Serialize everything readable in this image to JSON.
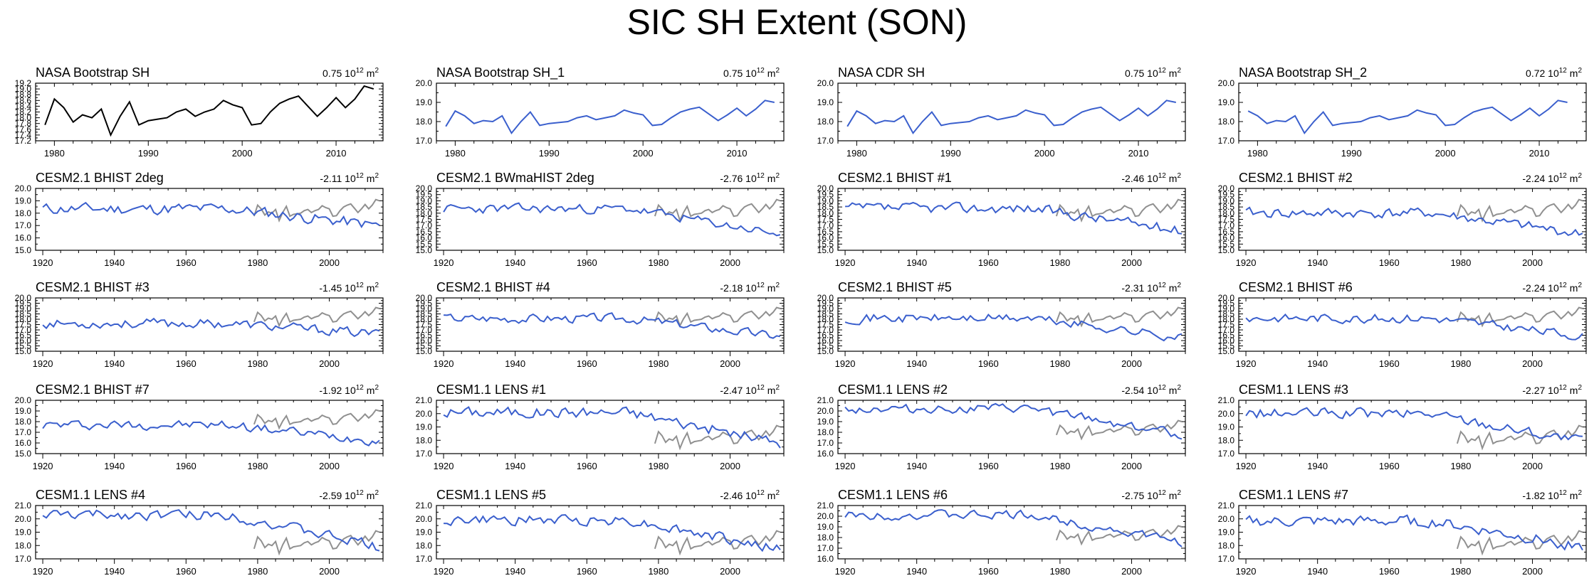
{
  "title": "SIC SH Extent (SON)",
  "unit_base": "10",
  "unit_exp": "12",
  "unit_m": "m",
  "unit_sq": "2",
  "colors": {
    "observed": "#000000",
    "model": "#3a5fcd",
    "obs_overlay": "#909090"
  },
  "chart_data": [
    {
      "type": "line",
      "title": "NASA Bootstrap SH",
      "trend": "0.75",
      "color": "#000000",
      "x_start": 1979,
      "xlim": [
        1978,
        2015
      ],
      "xticks": [
        1980,
        1990,
        2000,
        2010
      ],
      "ylim": [
        17.2,
        19.2
      ],
      "ytick_labels": [
        "17.2",
        "17.4",
        "17.6",
        "17.8",
        "18.0",
        "18.2",
        "18.4",
        "18.6",
        "18.8",
        "19.0",
        "19.2"
      ],
      "overlay": false,
      "values": [
        17.75,
        18.65,
        18.35,
        17.85,
        18.1,
        18.0,
        18.3,
        17.4,
        18.05,
        18.55,
        17.75,
        17.9,
        17.95,
        18.0,
        18.2,
        18.3,
        18.05,
        18.2,
        18.3,
        18.6,
        18.45,
        18.35,
        17.75,
        17.8,
        18.2,
        18.5,
        18.65,
        18.75,
        18.4,
        18.05,
        18.35,
        18.7,
        18.35,
        18.65,
        19.1,
        19.0
      ]
    },
    {
      "type": "line",
      "title": "NASA Bootstrap SH_1",
      "trend": "0.75",
      "color": "#3a5fcd",
      "x_start": 1979,
      "xlim": [
        1978,
        2015
      ],
      "xticks": [
        1980,
        1990,
        2000,
        2010
      ],
      "ylim": [
        17.0,
        20.0
      ],
      "ytick_labels": [
        "17.0",
        "18.0",
        "19.0",
        "20.0"
      ],
      "overlay": false,
      "values": [
        17.75,
        18.55,
        18.3,
        17.9,
        18.05,
        18.0,
        18.3,
        17.4,
        18.0,
        18.5,
        17.8,
        17.9,
        17.95,
        18.0,
        18.2,
        18.3,
        18.1,
        18.2,
        18.3,
        18.6,
        18.45,
        18.35,
        17.8,
        17.85,
        18.2,
        18.5,
        18.65,
        18.75,
        18.4,
        18.05,
        18.35,
        18.7,
        18.3,
        18.65,
        19.1,
        19.0
      ]
    },
    {
      "type": "line",
      "title": "NASA CDR SH",
      "trend": "0.75",
      "color": "#3a5fcd",
      "x_start": 1979,
      "xlim": [
        1978,
        2015
      ],
      "xticks": [
        1980,
        1990,
        2000,
        2010
      ],
      "ylim": [
        17.0,
        20.0
      ],
      "ytick_labels": [
        "17.0",
        "18.0",
        "19.0",
        "20.0"
      ],
      "overlay": false,
      "values": [
        17.75,
        18.55,
        18.3,
        17.9,
        18.05,
        18.0,
        18.3,
        17.4,
        18.0,
        18.5,
        17.8,
        17.9,
        17.95,
        18.0,
        18.2,
        18.3,
        18.1,
        18.2,
        18.3,
        18.6,
        18.45,
        18.35,
        17.8,
        17.85,
        18.2,
        18.5,
        18.65,
        18.75,
        18.4,
        18.05,
        18.35,
        18.7,
        18.3,
        18.65,
        19.1,
        19.0
      ]
    },
    {
      "type": "line",
      "title": "NASA Bootstrap SH_2",
      "trend": "0.72",
      "color": "#3a5fcd",
      "x_start": 1979,
      "xlim": [
        1978,
        2015
      ],
      "xticks": [
        1980,
        1990,
        2000,
        2010
      ],
      "ylim": [
        17.0,
        20.0
      ],
      "ytick_labels": [
        "17.0",
        "18.0",
        "19.0",
        "20.0"
      ],
      "overlay": false,
      "values": [
        18.55,
        18.3,
        17.9,
        18.05,
        18.0,
        18.3,
        17.4,
        18.0,
        18.5,
        17.8,
        17.9,
        17.95,
        18.0,
        18.2,
        18.3,
        18.1,
        18.2,
        18.3,
        18.6,
        18.45,
        18.35,
        17.8,
        17.85,
        18.2,
        18.5,
        18.65,
        18.75,
        18.4,
        18.05,
        18.35,
        18.7,
        18.3,
        18.65,
        19.1,
        19.0
      ]
    },
    {
      "type": "line",
      "title": "CESM2.1 BHIST 2deg",
      "trend": "-2.11",
      "color": "#3a5fcd",
      "x_start": 1920,
      "xlim": [
        1918,
        2015
      ],
      "xticks": [
        1920,
        1940,
        1960,
        1980,
        2000
      ],
      "ylim": [
        15.0,
        20.0
      ],
      "ytick_labels": [
        "15.0",
        "16.0",
        "17.0",
        "18.0",
        "19.0",
        "20.0"
      ],
      "overlay": true,
      "n": 95,
      "base": [
        18.35,
        17.0
      ],
      "amp": 0.42,
      "seed": 11
    },
    {
      "type": "line",
      "title": "CESM2.1 BWmaHIST 2deg",
      "trend": "-2.76",
      "color": "#3a5fcd",
      "x_start": 1920,
      "xlim": [
        1918,
        2015
      ],
      "xticks": [
        1920,
        1940,
        1960,
        1980,
        2000
      ],
      "ylim": [
        15.0,
        20.0
      ],
      "ytick_labels": [
        "15.0",
        "15.5",
        "16.0",
        "16.5",
        "17.0",
        "17.5",
        "18.0",
        "18.5",
        "19.0",
        "19.5",
        "20.0"
      ],
      "overlay": true,
      "n": 95,
      "base": [
        18.35,
        16.3
      ],
      "amp": 0.35,
      "seed": 23
    },
    {
      "type": "line",
      "title": "CESM2.1 BHIST #1",
      "trend": "-2.46",
      "color": "#3a5fcd",
      "x_start": 1920,
      "xlim": [
        1918,
        2015
      ],
      "xticks": [
        1920,
        1940,
        1960,
        1980,
        2000
      ],
      "ylim": [
        15.0,
        20.0
      ],
      "ytick_labels": [
        "15.0",
        "15.5",
        "16.0",
        "16.5",
        "17.0",
        "17.5",
        "18.0",
        "18.5",
        "19.0",
        "19.5",
        "20.0"
      ],
      "overlay": true,
      "n": 95,
      "base": [
        18.4,
        16.6
      ],
      "amp": 0.38,
      "seed": 37
    },
    {
      "type": "line",
      "title": "CESM2.1 BHIST #2",
      "trend": "-2.24",
      "color": "#3a5fcd",
      "x_start": 1920,
      "xlim": [
        1918,
        2015
      ],
      "xticks": [
        1920,
        1940,
        1960,
        1980,
        2000
      ],
      "ylim": [
        15.0,
        20.0
      ],
      "ytick_labels": [
        "15.0",
        "15.5",
        "16.0",
        "16.5",
        "17.0",
        "17.5",
        "18.0",
        "18.5",
        "19.0",
        "19.5",
        "20.0"
      ],
      "overlay": true,
      "n": 95,
      "base": [
        18.0,
        16.3
      ],
      "amp": 0.38,
      "seed": 41
    },
    {
      "type": "line",
      "title": "CESM2.1 BHIST #3",
      "trend": "-1.45",
      "color": "#3a5fcd",
      "x_start": 1920,
      "xlim": [
        1918,
        2015
      ],
      "xticks": [
        1920,
        1940,
        1960,
        1980,
        2000
      ],
      "ylim": [
        15.0,
        20.0
      ],
      "ytick_labels": [
        "15.0",
        "15.5",
        "16.0",
        "16.5",
        "17.0",
        "17.5",
        "18.0",
        "18.5",
        "19.0",
        "19.5",
        "20.0"
      ],
      "overlay": true,
      "n": 95,
      "base": [
        17.6,
        16.6
      ],
      "amp": 0.4,
      "seed": 53
    },
    {
      "type": "line",
      "title": "CESM2.1 BHIST #4",
      "trend": "-2.18",
      "color": "#3a5fcd",
      "x_start": 1920,
      "xlim": [
        1918,
        2015
      ],
      "xticks": [
        1920,
        1940,
        1960,
        1980,
        2000
      ],
      "ylim": [
        15.0,
        20.0
      ],
      "ytick_labels": [
        "15.0",
        "15.5",
        "16.0",
        "16.5",
        "17.0",
        "17.5",
        "18.0",
        "18.5",
        "19.0",
        "19.5",
        "20.0"
      ],
      "overlay": true,
      "n": 95,
      "base": [
        18.1,
        16.4
      ],
      "amp": 0.38,
      "seed": 67
    },
    {
      "type": "line",
      "title": "CESM2.1 BHIST #5",
      "trend": "-2.31",
      "color": "#3a5fcd",
      "x_start": 1920,
      "xlim": [
        1918,
        2015
      ],
      "xticks": [
        1920,
        1940,
        1960,
        1980,
        2000
      ],
      "ylim": [
        15.0,
        20.0
      ],
      "ytick_labels": [
        "15.0",
        "15.5",
        "16.0",
        "16.5",
        "17.0",
        "17.5",
        "18.0",
        "18.5",
        "19.0",
        "19.5",
        "20.0"
      ],
      "overlay": true,
      "n": 95,
      "base": [
        18.1,
        16.3
      ],
      "amp": 0.4,
      "seed": 71
    },
    {
      "type": "line",
      "title": "CESM2.1 BHIST #6",
      "trend": "-2.24",
      "color": "#3a5fcd",
      "x_start": 1920,
      "xlim": [
        1918,
        2015
      ],
      "xticks": [
        1920,
        1940,
        1960,
        1980,
        2000
      ],
      "ylim": [
        15.0,
        20.0
      ],
      "ytick_labels": [
        "15.0",
        "15.5",
        "16.0",
        "16.5",
        "17.0",
        "17.5",
        "18.0",
        "18.5",
        "19.0",
        "19.5",
        "20.0"
      ],
      "overlay": true,
      "n": 95,
      "base": [
        18.1,
        16.4
      ],
      "amp": 0.38,
      "seed": 83
    },
    {
      "type": "line",
      "title": "CESM2.1 BHIST #7",
      "trend": "-1.92",
      "color": "#3a5fcd",
      "x_start": 1920,
      "xlim": [
        1918,
        2015
      ],
      "xticks": [
        1920,
        1940,
        1960,
        1980,
        2000
      ],
      "ylim": [
        15.0,
        20.0
      ],
      "ytick_labels": [
        "15.0",
        "16.0",
        "17.0",
        "18.0",
        "19.0",
        "20.0"
      ],
      "overlay": true,
      "n": 95,
      "base": [
        17.7,
        16.2
      ],
      "amp": 0.4,
      "seed": 97
    },
    {
      "type": "line",
      "title": "CESM1.1 LENS #1",
      "trend": "-2.47",
      "color": "#3a5fcd",
      "x_start": 1920,
      "xlim": [
        1918,
        2015
      ],
      "xticks": [
        1920,
        1940,
        1960,
        1980,
        2000
      ],
      "ylim": [
        17.0,
        21.0
      ],
      "ytick_labels": [
        "17.0",
        "18.0",
        "19.0",
        "20.0",
        "21.0"
      ],
      "overlay": true,
      "n": 95,
      "base": [
        20.1,
        17.8
      ],
      "amp": 0.38,
      "seed": 101
    },
    {
      "type": "line",
      "title": "CESM1.1 LENS #2",
      "trend": "-2.54",
      "color": "#3a5fcd",
      "x_start": 1920,
      "xlim": [
        1918,
        2015
      ],
      "xticks": [
        1920,
        1940,
        1960,
        1980,
        2000
      ],
      "ylim": [
        16.0,
        21.0
      ],
      "ytick_labels": [
        "16.0",
        "17.0",
        "18.0",
        "19.0",
        "20.0",
        "21.0"
      ],
      "overlay": true,
      "n": 95,
      "base": [
        20.2,
        17.8
      ],
      "amp": 0.38,
      "seed": 113
    },
    {
      "type": "line",
      "title": "CESM1.1 LENS #3",
      "trend": "-2.27",
      "color": "#3a5fcd",
      "x_start": 1920,
      "xlim": [
        1918,
        2015
      ],
      "xticks": [
        1920,
        1940,
        1960,
        1980,
        2000
      ],
      "ylim": [
        17.0,
        21.0
      ],
      "ytick_labels": [
        "17.0",
        "18.0",
        "19.0",
        "20.0",
        "21.0"
      ],
      "overlay": true,
      "n": 95,
      "base": [
        20.0,
        17.9
      ],
      "amp": 0.36,
      "seed": 127
    },
    {
      "type": "line",
      "title": "CESM1.1 LENS #4",
      "trend": "-2.59",
      "color": "#3a5fcd",
      "x_start": 1920,
      "xlim": [
        1918,
        2015
      ],
      "xticks": [
        1920,
        1940,
        1960,
        1980,
        2000
      ],
      "ylim": [
        17.0,
        21.0
      ],
      "ytick_labels": [
        "17.0",
        "18.0",
        "19.0",
        "20.0",
        "21.0"
      ],
      "overlay": true,
      "n": 95,
      "base": [
        20.3,
        17.9
      ],
      "amp": 0.35,
      "seed": 131
    },
    {
      "type": "line",
      "title": "CESM1.1 LENS #5",
      "trend": "-2.46",
      "color": "#3a5fcd",
      "x_start": 1920,
      "xlim": [
        1918,
        2015
      ],
      "xticks": [
        1920,
        1940,
        1960,
        1980,
        2000
      ],
      "ylim": [
        17.0,
        21.0
      ],
      "ytick_labels": [
        "17.0",
        "18.0",
        "19.0",
        "20.0",
        "21.0"
      ],
      "overlay": true,
      "n": 95,
      "base": [
        19.9,
        17.7
      ],
      "amp": 0.35,
      "seed": 149
    },
    {
      "type": "line",
      "title": "CESM1.1 LENS #6",
      "trend": "-2.75",
      "color": "#3a5fcd",
      "x_start": 1920,
      "xlim": [
        1918,
        2015
      ],
      "xticks": [
        1920,
        1940,
        1960,
        1980,
        2000
      ],
      "ylim": [
        16.0,
        21.0
      ],
      "ytick_labels": [
        "16.0",
        "17.0",
        "18.0",
        "19.0",
        "20.0",
        "21.0"
      ],
      "overlay": true,
      "n": 95,
      "base": [
        20.1,
        17.6
      ],
      "amp": 0.38,
      "seed": 151
    },
    {
      "type": "line",
      "title": "CESM1.1 LENS #7",
      "trend": "-1.82",
      "color": "#3a5fcd",
      "x_start": 1920,
      "xlim": [
        1918,
        2015
      ],
      "xticks": [
        1920,
        1940,
        1960,
        1980,
        2000
      ],
      "ylim": [
        17.0,
        21.0
      ],
      "ytick_labels": [
        "17.0",
        "18.0",
        "19.0",
        "20.0",
        "21.0"
      ],
      "overlay": true,
      "n": 95,
      "base": [
        19.8,
        17.9
      ],
      "amp": 0.38,
      "seed": 163
    }
  ]
}
